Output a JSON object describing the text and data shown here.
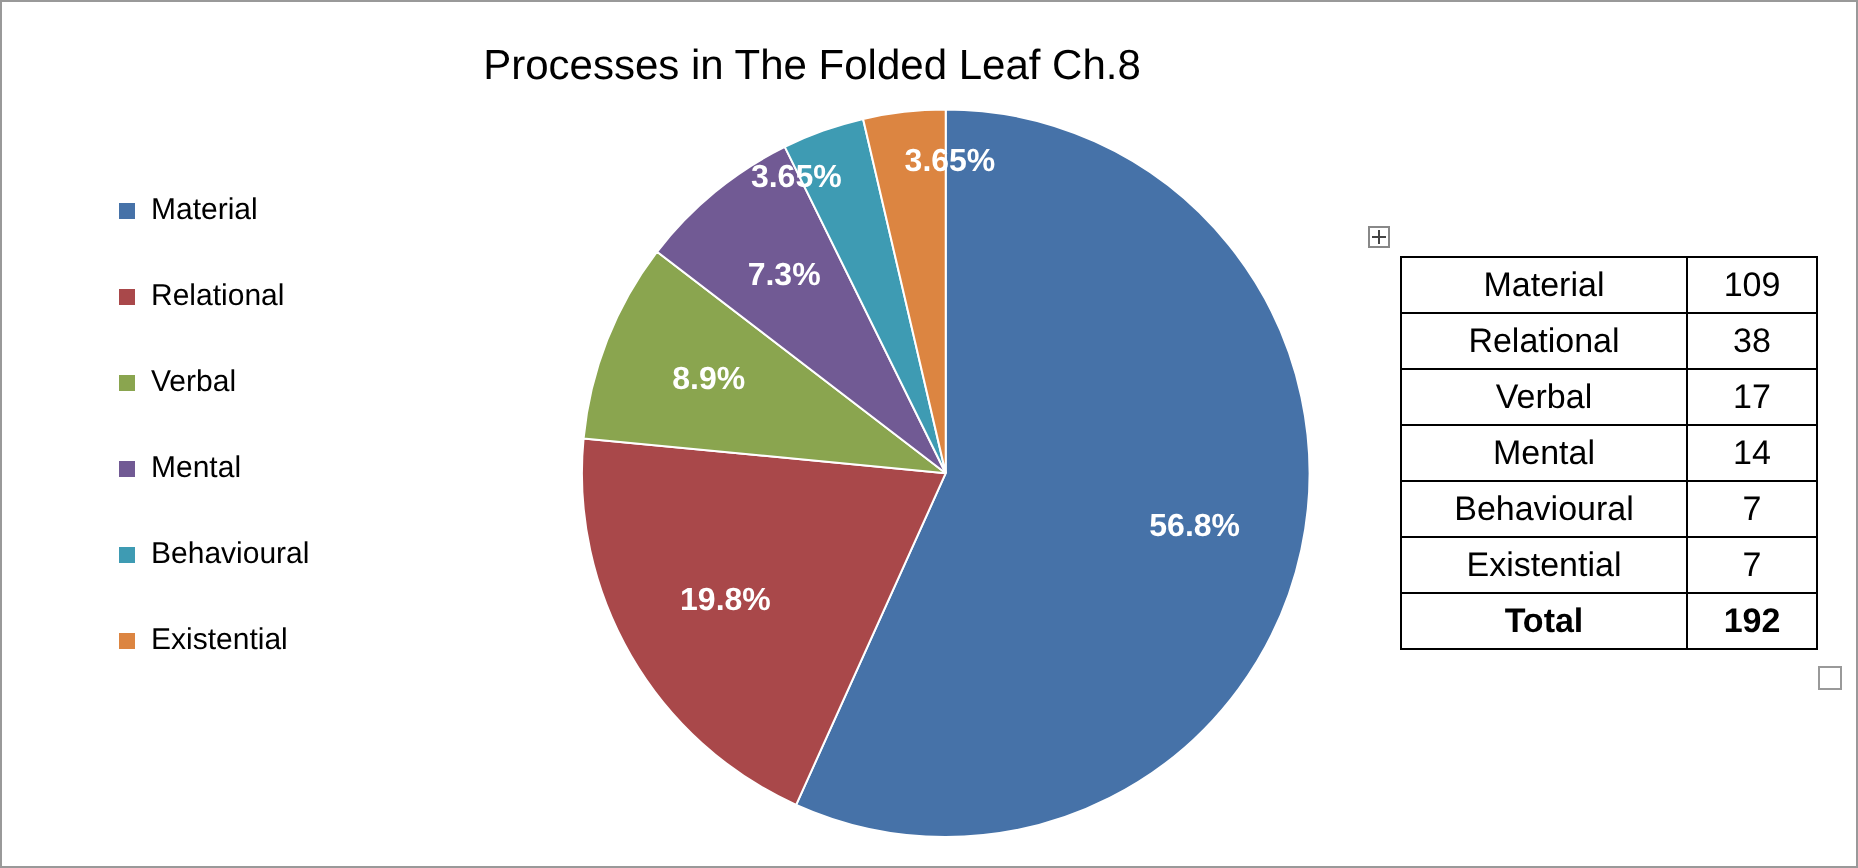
{
  "chart_data": [
    {
      "type": "pie",
      "title": "Processes in The Folded Leaf Ch.8",
      "categories": [
        "Material",
        "Relational",
        "Verbal",
        "Mental",
        "Behavioural",
        "Existential"
      ],
      "values": [
        56.8,
        19.8,
        8.9,
        7.3,
        3.65,
        3.65
      ],
      "colors": [
        "#4672a8",
        "#a9484a",
        "#8aa54f",
        "#715a94",
        "#3e9bb3",
        "#dc8541"
      ],
      "value_labels": [
        "56.8%",
        "19.8%",
        "8.9%",
        "7.3%",
        "3.65%",
        "3.65%"
      ],
      "legend": "left"
    },
    {
      "type": "other",
      "categories": [
        "Material",
        "Relational",
        "Verbal",
        "Mental",
        "Behavioural",
        "Existential"
      ],
      "values": [
        109,
        38,
        17,
        14,
        7,
        7
      ],
      "data_labels": true,
      "totals": [
        "192"
      ],
      "annotations": [
        "Total"
      ]
    }
  ]
}
